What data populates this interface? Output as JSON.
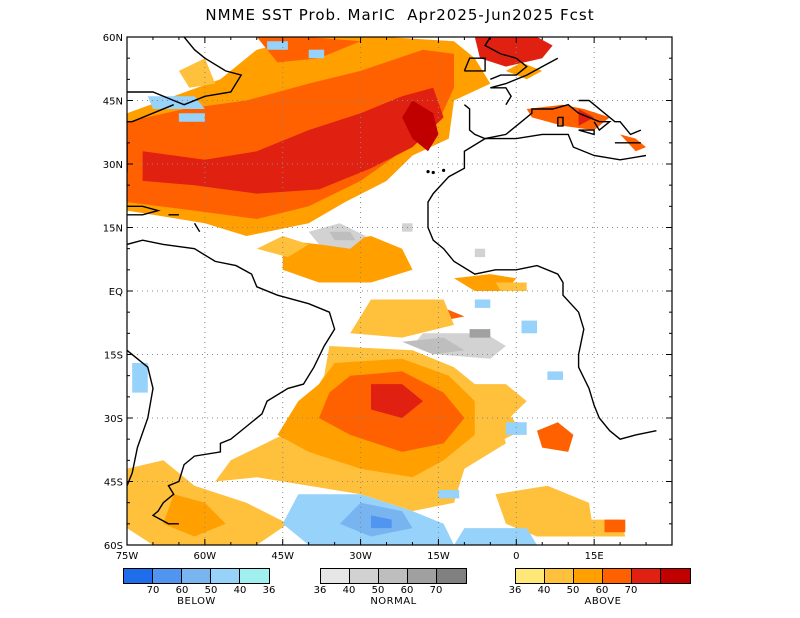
{
  "title": "NMME SST Prob. MarIC  Apr2025-Jun2025 Fcst",
  "map": {
    "lat_labels": [
      "60N",
      "45N",
      "30N",
      "15N",
      "EQ",
      "15S",
      "30S",
      "45S",
      "60S"
    ],
    "lon_labels": [
      "75W",
      "60W",
      "45W",
      "30W",
      "15W",
      "0",
      "15E"
    ],
    "colors": {
      "above_36": "#ffe878",
      "above_40": "#ffc03c",
      "above_50": "#ffa000",
      "above_60": "#ff6000",
      "above_70": "#e02010",
      "above_80": "#c00000",
      "normal_36": "#e6e6e6",
      "normal_40": "#d2d2d2",
      "normal_50": "#bebebe",
      "normal_60": "#a0a0a0",
      "normal_70": "#808080",
      "below_36": "#a0f0f0",
      "below_40": "#96d2fa",
      "below_50": "#78b4f0",
      "below_60": "#5096f0",
      "below_70": "#1e6eeb"
    }
  },
  "legend": {
    "below": {
      "caption": "BELOW",
      "ticks": [
        "70",
        "60",
        "50",
        "40",
        "36"
      ],
      "colors": [
        "#1e6eeb",
        "#5096f0",
        "#78b4f0",
        "#96d2fa",
        "#a0f0f0"
      ]
    },
    "normal": {
      "caption": "NORMAL",
      "ticks": [
        "36",
        "40",
        "50",
        "60",
        "70"
      ],
      "colors": [
        "#e6e6e6",
        "#d2d2d2",
        "#bebebe",
        "#a0a0a0",
        "#808080"
      ]
    },
    "above": {
      "caption": "ABOVE",
      "ticks": [
        "36",
        "40",
        "50",
        "60",
        "70"
      ],
      "colors": [
        "#ffe878",
        "#ffc03c",
        "#ffa000",
        "#ff6000",
        "#e02010",
        "#c00000"
      ]
    }
  }
}
